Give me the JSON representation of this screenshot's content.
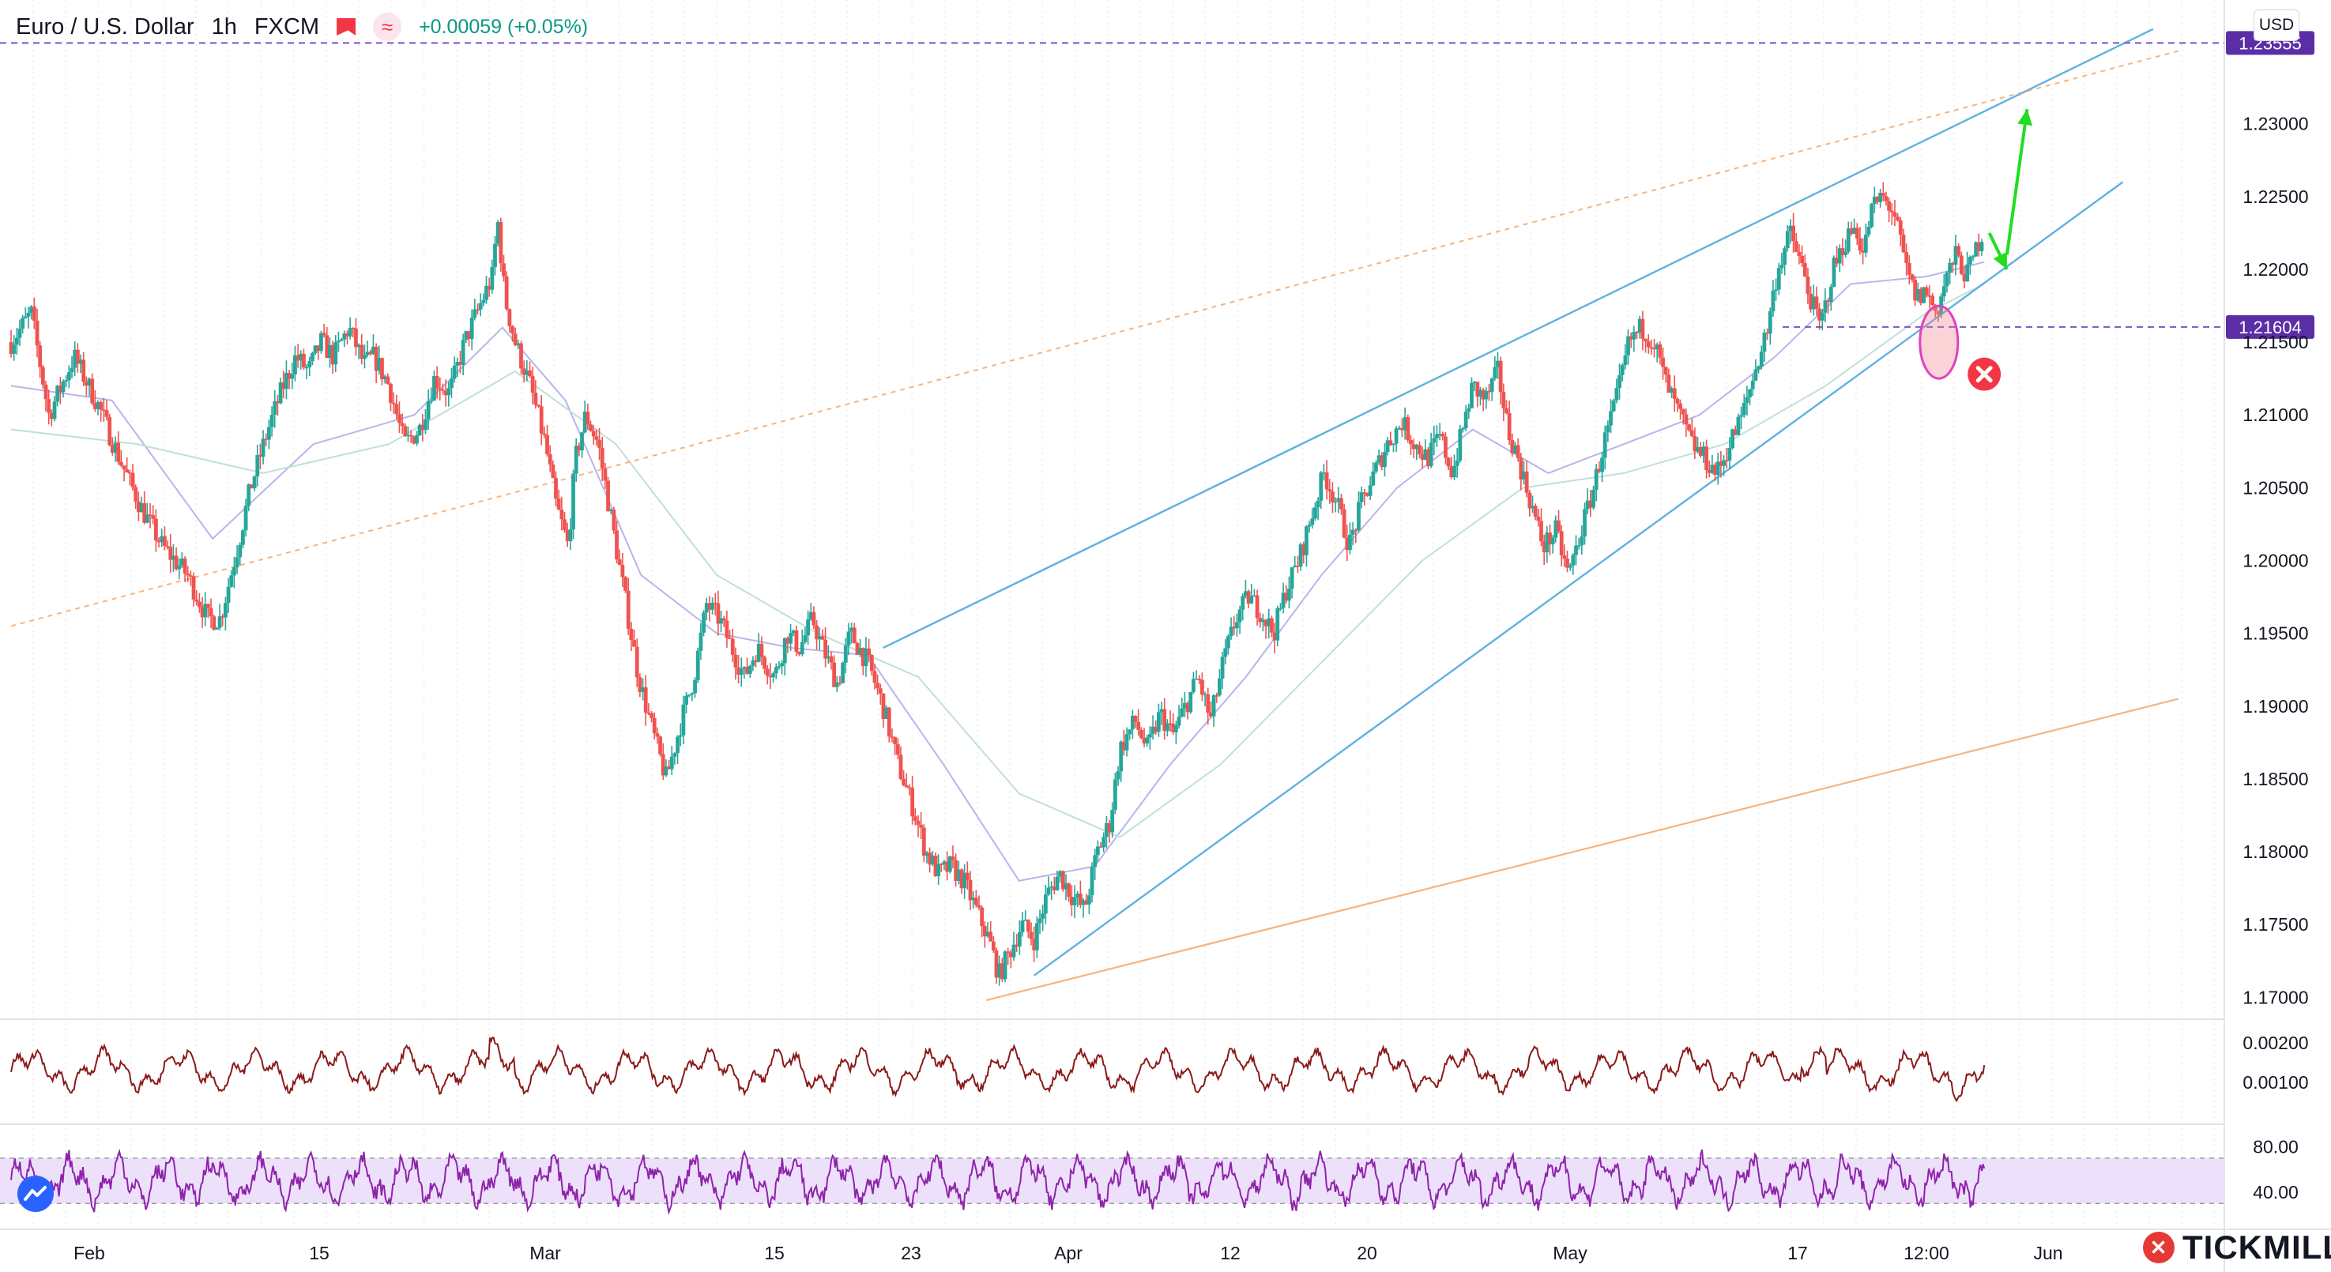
{
  "header": {
    "symbol": "Euro / U.S. Dollar",
    "interval": "1h",
    "source": "FXCM",
    "change": "+0.00059 (+0.05%)"
  },
  "currency_button": "USD",
  "brand": "TICKMILL",
  "colors": {
    "up": "#26a69a",
    "down": "#ef5350",
    "channel": "#5fb1e0",
    "orange": "#f5a25d",
    "purple_line": "#7b52c9",
    "green_arrow": "#22dd22",
    "macd": "#8b1a1a",
    "rsi": "#8e24aa",
    "rsi_band": "#ede0fb"
  },
  "chart_data": {
    "type": "candlestick",
    "title": "Euro / U.S. Dollar, 1h, FXCM",
    "ylim": [
      1.1685,
      1.2385
    ],
    "y_ticks": [
      "1.17000",
      "1.17500",
      "1.18000",
      "1.18500",
      "1.19000",
      "1.19500",
      "1.20000",
      "1.20500",
      "1.21000",
      "1.21500",
      "1.22000",
      "1.22500",
      "1.23000"
    ],
    "x_ticks": [
      "Feb",
      "15",
      "Mar",
      "15",
      "23",
      "Apr",
      "12",
      "20",
      "May",
      "17",
      "12:00",
      "Jun"
    ],
    "price_levels": [
      {
        "label": "1.23555",
        "value": 1.23555,
        "style": "dashed"
      },
      {
        "label": "1.21604",
        "value": 1.21604,
        "style": "dashed"
      }
    ],
    "close_path": [
      [
        0,
        1.215
      ],
      [
        0.8,
        1.217
      ],
      [
        1.5,
        1.21
      ],
      [
        2.5,
        1.214
      ],
      [
        3.5,
        1.2105
      ],
      [
        4.3,
        1.207
      ],
      [
        5.2,
        1.2035
      ],
      [
        6.0,
        1.201
      ],
      [
        7.0,
        1.199
      ],
      [
        7.8,
        1.196
      ],
      [
        8.3,
        1.196
      ],
      [
        9.0,
        1.201
      ],
      [
        9.5,
        1.205
      ],
      [
        10.2,
        1.209
      ],
      [
        10.8,
        1.212
      ],
      [
        11.3,
        1.214
      ],
      [
        11.8,
        1.213
      ],
      [
        12.3,
        1.215
      ],
      [
        12.8,
        1.214
      ],
      [
        13.4,
        1.216
      ],
      [
        14.0,
        1.2135
      ],
      [
        14.4,
        1.214
      ],
      [
        15.0,
        1.212
      ],
      [
        15.6,
        1.208
      ],
      [
        16.2,
        1.209
      ],
      [
        16.8,
        1.2125
      ],
      [
        17.4,
        1.2115
      ],
      [
        18.0,
        1.215
      ],
      [
        18.6,
        1.2175
      ],
      [
        19.1,
        1.2195
      ],
      [
        19.3,
        1.2235
      ],
      [
        19.6,
        1.218
      ],
      [
        20.0,
        1.215
      ],
      [
        20.6,
        1.212
      ],
      [
        21.2,
        1.208
      ],
      [
        21.6,
        1.204
      ],
      [
        22.1,
        1.201
      ],
      [
        22.4,
        1.207
      ],
      [
        22.8,
        1.21
      ],
      [
        23.3,
        1.208
      ],
      [
        23.8,
        1.203
      ],
      [
        24.3,
        1.198
      ],
      [
        24.9,
        1.192
      ],
      [
        25.5,
        1.188
      ],
      [
        26.0,
        1.185
      ],
      [
        26.6,
        1.189
      ],
      [
        27.1,
        1.192
      ],
      [
        27.6,
        1.197
      ],
      [
        28.1,
        1.196
      ],
      [
        28.6,
        1.194
      ],
      [
        29.1,
        1.192
      ],
      [
        29.6,
        1.194
      ],
      [
        30.3,
        1.192
      ],
      [
        30.8,
        1.195
      ],
      [
        31.3,
        1.194
      ],
      [
        31.8,
        1.196
      ],
      [
        32.2,
        1.194
      ],
      [
        32.8,
        1.1915
      ],
      [
        33.3,
        1.195
      ],
      [
        34.0,
        1.193
      ],
      [
        34.6,
        1.19
      ],
      [
        35.2,
        1.186
      ],
      [
        35.8,
        1.183
      ],
      [
        36.3,
        1.18
      ],
      [
        36.8,
        1.1785
      ],
      [
        37.3,
        1.179
      ],
      [
        37.8,
        1.178
      ],
      [
        38.3,
        1.176
      ],
      [
        38.8,
        1.174
      ],
      [
        39.2,
        1.1715
      ],
      [
        39.6,
        1.173
      ],
      [
        40.1,
        1.175
      ],
      [
        40.6,
        1.174
      ],
      [
        41.1,
        1.177
      ],
      [
        41.6,
        1.1785
      ],
      [
        42.1,
        1.177
      ],
      [
        42.6,
        1.176
      ],
      [
        43.1,
        1.18
      ],
      [
        43.6,
        1.182
      ],
      [
        44.0,
        1.187
      ],
      [
        44.6,
        1.189
      ],
      [
        45.1,
        1.187
      ],
      [
        45.6,
        1.1895
      ],
      [
        46.1,
        1.188
      ],
      [
        46.6,
        1.19
      ],
      [
        47.1,
        1.192
      ],
      [
        47.6,
        1.189
      ],
      [
        48.1,
        1.193
      ],
      [
        48.6,
        1.196
      ],
      [
        49.1,
        1.1975
      ],
      [
        49.6,
        1.1965
      ],
      [
        50.1,
        1.195
      ],
      [
        50.6,
        1.198
      ],
      [
        51.1,
        1.2
      ],
      [
        51.6,
        1.203
      ],
      [
        52.1,
        1.206
      ],
      [
        52.6,
        1.204
      ],
      [
        53.1,
        1.201
      ],
      [
        53.6,
        1.204
      ],
      [
        54.1,
        1.206
      ],
      [
        54.6,
        1.208
      ],
      [
        55.2,
        1.2095
      ],
      [
        55.7,
        1.208
      ],
      [
        56.2,
        1.207
      ],
      [
        56.7,
        1.2085
      ],
      [
        57.2,
        1.206
      ],
      [
        57.6,
        1.209
      ],
      [
        58.0,
        1.212
      ],
      [
        58.5,
        1.211
      ],
      [
        59.0,
        1.213
      ],
      [
        59.4,
        1.209
      ],
      [
        59.8,
        1.207
      ],
      [
        60.3,
        1.204
      ],
      [
        60.8,
        1.201
      ],
      [
        61.3,
        1.202
      ],
      [
        61.8,
        1.199
      ],
      [
        62.3,
        1.202
      ],
      [
        62.8,
        1.205
      ],
      [
        63.2,
        1.208
      ],
      [
        63.7,
        1.211
      ],
      [
        64.2,
        1.215
      ],
      [
        64.7,
        1.216
      ],
      [
        65.2,
        1.215
      ],
      [
        65.7,
        1.212
      ],
      [
        66.2,
        1.21
      ],
      [
        66.7,
        1.208
      ],
      [
        67.2,
        1.207
      ],
      [
        67.7,
        1.206
      ],
      [
        68.2,
        1.208
      ],
      [
        68.7,
        1.21
      ],
      [
        69.2,
        1.213
      ],
      [
        69.7,
        1.216
      ],
      [
        70.1,
        1.22
      ],
      [
        70.6,
        1.2225
      ],
      [
        71.0,
        1.2205
      ],
      [
        71.4,
        1.218
      ],
      [
        71.8,
        1.216
      ],
      [
        72.3,
        1.22
      ],
      [
        72.8,
        1.222
      ],
      [
        73.2,
        1.223
      ],
      [
        73.5,
        1.221
      ],
      [
        73.8,
        1.224
      ],
      [
        74.2,
        1.225
      ],
      [
        74.7,
        1.224
      ],
      [
        75.2,
        1.22
      ],
      [
        75.6,
        1.218
      ],
      [
        76.0,
        1.2185
      ],
      [
        76.4,
        1.217
      ],
      [
        76.8,
        1.2195
      ],
      [
        77.2,
        1.221
      ],
      [
        77.6,
        1.2195
      ],
      [
        78.0,
        1.2215
      ],
      [
        78.3,
        1.223
      ]
    ],
    "bands": [
      {
        "name": "",
        "values": [
          [
            0,
            1.212
          ],
          [
            4,
            1.211
          ],
          [
            8,
            1.2015
          ],
          [
            12,
            1.208
          ],
          [
            16,
            1.21
          ],
          [
            19.5,
            1.216
          ],
          [
            22,
            1.211
          ],
          [
            25,
            1.199
          ],
          [
            28,
            1.195
          ],
          [
            31,
            1.194
          ],
          [
            34,
            1.1935
          ],
          [
            37,
            1.186
          ],
          [
            40,
            1.178
          ],
          [
            43,
            1.179
          ],
          [
            46,
            1.186
          ],
          [
            49,
            1.192
          ],
          [
            52,
            1.199
          ],
          [
            55,
            1.205
          ],
          [
            58,
            1.209
          ],
          [
            61,
            1.206
          ],
          [
            64,
            1.208
          ],
          [
            67,
            1.21
          ],
          [
            70,
            1.214
          ],
          [
            73,
            1.219
          ],
          [
            76,
            1.2195
          ],
          [
            78.3,
            1.2205
          ]
        ]
      },
      {
        "name": "",
        "values": [
          [
            0,
            1.209
          ],
          [
            5,
            1.208
          ],
          [
            10,
            1.206
          ],
          [
            15,
            1.208
          ],
          [
            20,
            1.213
          ],
          [
            24,
            1.208
          ],
          [
            28,
            1.199
          ],
          [
            32,
            1.195
          ],
          [
            36,
            1.192
          ],
          [
            40,
            1.184
          ],
          [
            44,
            1.181
          ],
          [
            48,
            1.186
          ],
          [
            52,
            1.193
          ],
          [
            56,
            1.2
          ],
          [
            60,
            1.205
          ],
          [
            64,
            1.206
          ],
          [
            68,
            1.208
          ],
          [
            72,
            1.212
          ],
          [
            76,
            1.217
          ],
          [
            78.3,
            1.219
          ]
        ]
      }
    ],
    "lines": [
      {
        "name": "",
        "points": [
          [
            34.6,
            1.194
          ],
          [
            85,
            1.2365
          ]
        ]
      },
      {
        "name": "",
        "points": [
          [
            40.6,
            1.1715
          ],
          [
            83.8,
            1.226
          ]
        ]
      },
      {
        "name": "",
        "points": [
          [
            0,
            1.1955
          ],
          [
            86,
            1.235
          ]
        ]
      },
      {
        "name": "",
        "points": [
          [
            38.7,
            1.1698
          ],
          [
            86,
            1.1905
          ]
        ]
      }
    ],
    "signals": [
      {
        "type": "arrow",
        "color": "green",
        "from": [
          78.5,
          1.2225
        ],
        "to": [
          79.2,
          1.22
        ]
      },
      {
        "type": "arrow",
        "color": "green",
        "from": [
          79.2,
          1.221
        ],
        "to": [
          80.0,
          1.231
        ]
      },
      {
        "type": "circle",
        "at": [
          76.5,
          1.215
        ]
      },
      {
        "type": "cross",
        "at": [
          78.3,
          1.2128
        ]
      }
    ],
    "indicators": [
      {
        "name": "",
        "ylim": [
          0.0,
          0.0024
        ],
        "ticks": [
          "0.00200",
          "0.00100"
        ]
      },
      {
        "name": "",
        "ylim": [
          10,
          95
        ],
        "ticks": [
          "80.00",
          "40.00"
        ],
        "band": [
          30,
          70
        ]
      }
    ]
  }
}
